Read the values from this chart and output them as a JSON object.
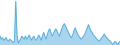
{
  "line_color": "#4da6d9",
  "background_color": "#ffffff",
  "fill_color": "#a8d4ee",
  "values": [
    0.28,
    0.22,
    0.25,
    0.2,
    0.22,
    0.25,
    0.2,
    0.18,
    0.22,
    0.2,
    0.18,
    0.16,
    0.18,
    0.95,
    0.3,
    0.15,
    0.18,
    0.22,
    0.28,
    0.25,
    0.22,
    0.28,
    0.22,
    0.25,
    0.3,
    0.25,
    0.2,
    0.25,
    0.28,
    0.22,
    0.2,
    0.25,
    0.3,
    0.25,
    0.2,
    0.28,
    0.35,
    0.28,
    0.22,
    0.3,
    0.38,
    0.42,
    0.35,
    0.28,
    0.32,
    0.38,
    0.42,
    0.38,
    0.32,
    0.28,
    0.35,
    0.42,
    0.48,
    0.52,
    0.48,
    0.42,
    0.38,
    0.32,
    0.28,
    0.25,
    0.3,
    0.38,
    0.44,
    0.38,
    0.32,
    0.28,
    0.25,
    0.22,
    0.25,
    0.28,
    0.32,
    0.38,
    0.44,
    0.5,
    0.44,
    0.38,
    0.35,
    0.3,
    0.28,
    0.25,
    0.22,
    0.2,
    0.18,
    0.22,
    0.25,
    0.28,
    0.32,
    0.28,
    0.25,
    0.22,
    0.2,
    0.18,
    0.15,
    0.12,
    0.15,
    0.18,
    0.15,
    0.12,
    0.15,
    0.18
  ]
}
